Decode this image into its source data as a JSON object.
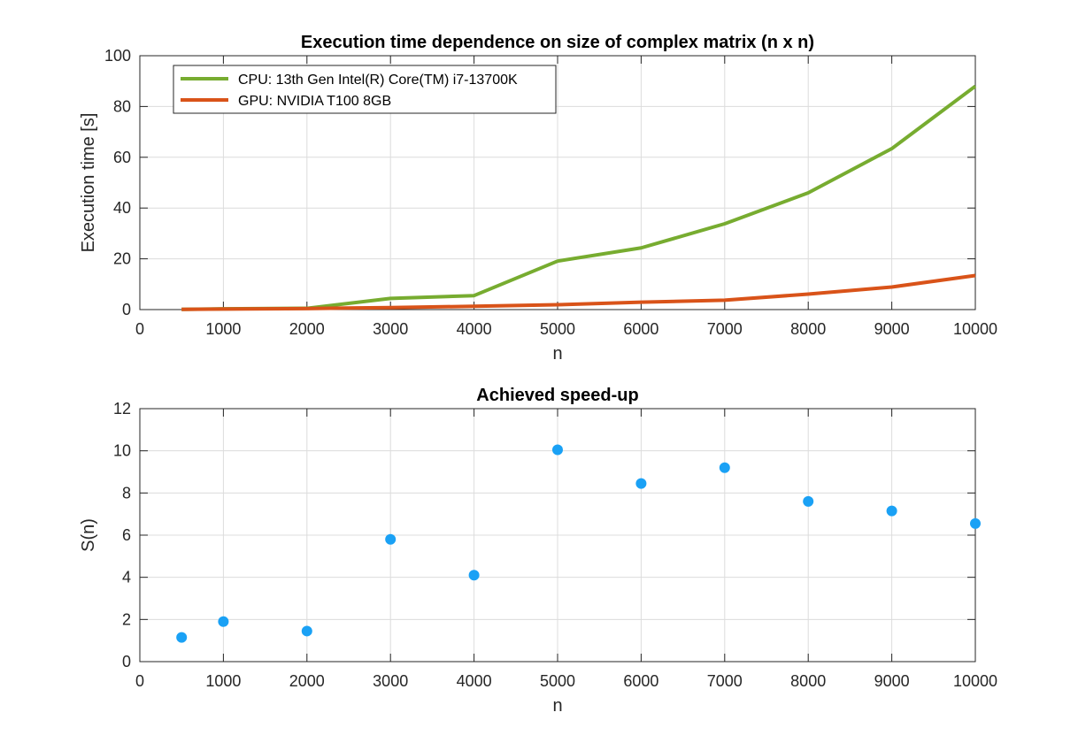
{
  "chart_data": [
    {
      "type": "line",
      "title": "Execution time dependence on size of complex matrix (n x n)",
      "xlabel": "n",
      "ylabel": "Execution time [s]",
      "xlim": [
        0,
        10000
      ],
      "ylim": [
        0,
        100
      ],
      "xticks": [
        0,
        1000,
        2000,
        3000,
        4000,
        5000,
        6000,
        7000,
        8000,
        9000,
        10000
      ],
      "yticks": [
        0,
        20,
        40,
        60,
        80,
        100
      ],
      "grid": true,
      "legend": "top-left",
      "x": [
        500,
        1000,
        2000,
        3000,
        4000,
        5000,
        6000,
        7000,
        8000,
        9000,
        10000
      ],
      "series": [
        {
          "name": "CPU: 13th Gen Intel(R) Core(TM) i7-13700K",
          "color": "#77ac30",
          "values": [
            0.1,
            0.3,
            0.5,
            4.4,
            5.5,
            19.1,
            24.3,
            33.8,
            46.0,
            63.4,
            88.0
          ]
        },
        {
          "name": "GPU: NVIDIA T100 8GB",
          "color": "#d95319",
          "values": [
            0.1,
            0.2,
            0.4,
            0.8,
            1.3,
            1.9,
            2.9,
            3.7,
            6.1,
            8.9,
            13.4
          ]
        }
      ]
    },
    {
      "type": "scatter",
      "title": "Achieved speed-up",
      "xlabel": "n",
      "ylabel": "S(n)",
      "xlim": [
        0,
        10000
      ],
      "ylim": [
        0,
        12
      ],
      "xticks": [
        0,
        1000,
        2000,
        3000,
        4000,
        5000,
        6000,
        7000,
        8000,
        9000,
        10000
      ],
      "yticks": [
        0,
        2,
        4,
        6,
        8,
        10,
        12
      ],
      "grid": true,
      "x": [
        500,
        1000,
        2000,
        3000,
        4000,
        5000,
        6000,
        7000,
        8000,
        9000,
        10000
      ],
      "series": [
        {
          "color": "#1aa1f5",
          "values": [
            1.15,
            1.9,
            1.45,
            5.8,
            4.1,
            10.05,
            8.45,
            9.2,
            7.6,
            7.15,
            6.55
          ]
        }
      ]
    }
  ]
}
